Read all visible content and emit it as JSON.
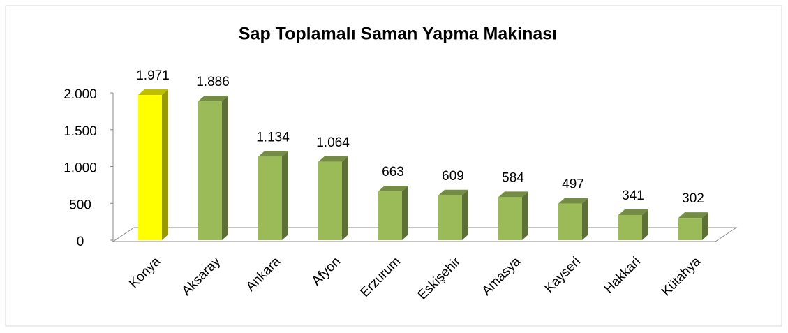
{
  "chart_data": {
    "type": "bar3d",
    "title": "Sap Toplamalı Saman Yapma Makinası",
    "categories": [
      "Konya",
      "Aksaray",
      "Ankara",
      "Afyon",
      "Erzurum",
      "Eskişehir",
      "Amasya",
      "Kayseri",
      "Hakkari",
      "Kütahya"
    ],
    "values": [
      1971,
      1886,
      1134,
      1064,
      663,
      609,
      584,
      497,
      341,
      302
    ],
    "value_labels": [
      "1.971",
      "1.886",
      "1.134",
      "1.064",
      "663",
      "609",
      "584",
      "497",
      "341",
      "302"
    ],
    "colors": [
      "#ffff00",
      "#9bbb59",
      "#9bbb59",
      "#9bbb59",
      "#9bbb59",
      "#9bbb59",
      "#9bbb59",
      "#9bbb59",
      "#9bbb59",
      "#9bbb59"
    ],
    "ylim": [
      0,
      2000
    ],
    "yticks": [
      0,
      500,
      {
        "value": 1000,
        "label": "1.000"
      },
      {
        "value": 1500,
        "label": "1.500"
      },
      {
        "value": 2000,
        "label": "2.000"
      }
    ]
  }
}
